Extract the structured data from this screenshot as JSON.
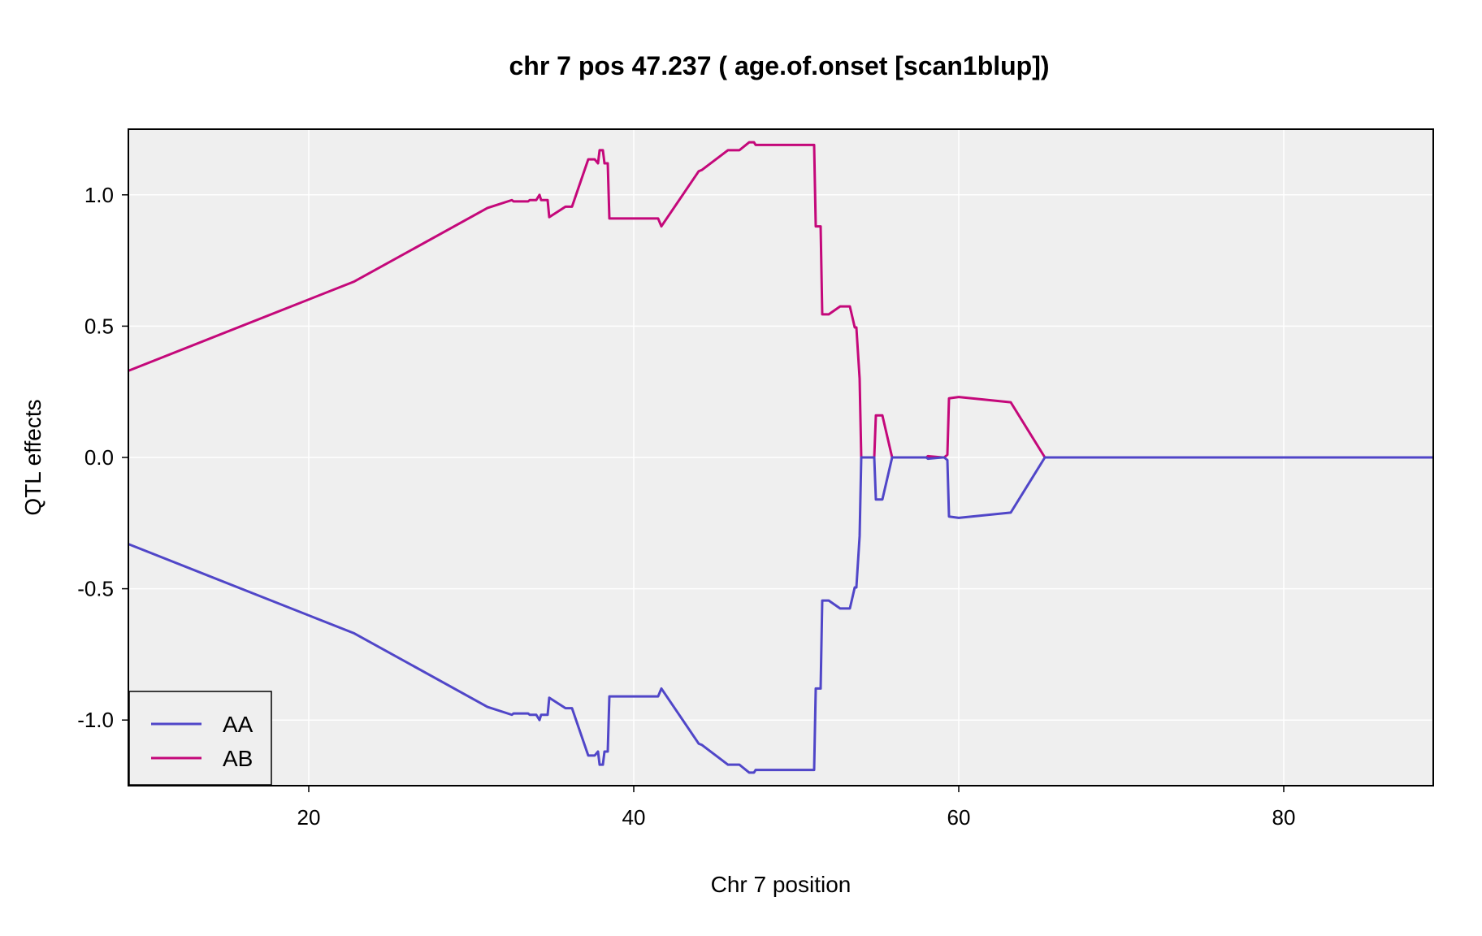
{
  "chart_data": {
    "type": "line",
    "title": "chr 7 pos 47.237 ( age.of.onset  [scan1blup])",
    "xlabel": "Chr 7 position",
    "ylabel": "QTL effects",
    "xlim": [
      8.9,
      89.2
    ],
    "ylim": [
      -1.25,
      1.25
    ],
    "xticks": [
      20,
      40,
      60,
      80
    ],
    "xtick_labels": [
      "20",
      "40",
      "60",
      "80"
    ],
    "yticks": [
      -1.0,
      -0.5,
      0.0,
      0.5,
      1.0
    ],
    "ytick_labels": [
      "-1.0",
      "-0.5",
      "0.0",
      "0.5",
      "1.0"
    ],
    "grid": true,
    "legend_position": "bottom-left",
    "colors": {
      "AA": "#5046c8",
      "AB": "#c4087a",
      "panel_bg": "#efefef",
      "grid": "#ffffff"
    },
    "series": [
      {
        "name": "AB",
        "x": [
          8.9,
          22.8,
          31.0,
          32.5,
          32.6,
          33.5,
          33.6,
          34.0,
          34.2,
          34.3,
          34.7,
          34.8,
          35.8,
          36.2,
          37.2,
          37.6,
          37.8,
          37.9,
          38.1,
          38.2,
          38.4,
          38.5,
          41.3,
          41.5,
          41.7,
          44.0,
          44.2,
          45.8,
          46.5,
          47.1,
          47.4,
          47.5,
          51.1,
          51.2,
          51.5,
          51.6,
          52.0,
          52.7,
          53.3,
          53.6,
          53.7,
          53.9,
          54.0,
          54.8,
          54.9,
          55.3,
          55.9,
          58.0,
          58.1,
          59.0,
          59.1,
          59.3,
          59.4,
          60.0,
          63.2,
          65.3,
          89.2
        ],
        "values": [
          0.33,
          0.67,
          0.95,
          0.98,
          0.975,
          0.975,
          0.98,
          0.98,
          1.0,
          0.98,
          0.98,
          0.915,
          0.955,
          0.955,
          1.135,
          1.135,
          1.12,
          1.17,
          1.17,
          1.12,
          1.12,
          0.91,
          0.91,
          0.91,
          0.88,
          1.09,
          1.095,
          1.17,
          1.17,
          1.2,
          1.2,
          1.19,
          1.19,
          0.88,
          0.88,
          0.545,
          0.545,
          0.575,
          0.575,
          0.495,
          0.495,
          0.3,
          0.0,
          0.0,
          0.16,
          0.16,
          0.0,
          0.0,
          0.005,
          0.0,
          0.0,
          0.01,
          0.225,
          0.23,
          0.21,
          0.0,
          0.0
        ]
      },
      {
        "name": "AA",
        "x": [
          8.9,
          22.8,
          31.0,
          32.5,
          32.6,
          33.5,
          33.6,
          34.0,
          34.2,
          34.3,
          34.7,
          34.8,
          35.8,
          36.2,
          37.2,
          37.6,
          37.8,
          37.9,
          38.1,
          38.2,
          38.4,
          38.5,
          41.3,
          41.5,
          41.7,
          44.0,
          44.2,
          45.8,
          46.5,
          47.1,
          47.4,
          47.5,
          51.1,
          51.2,
          51.5,
          51.6,
          52.0,
          52.7,
          53.3,
          53.6,
          53.7,
          53.9,
          54.0,
          54.8,
          54.9,
          55.3,
          55.9,
          58.0,
          58.1,
          59.0,
          59.1,
          59.3,
          59.4,
          60.0,
          63.2,
          65.3,
          89.2
        ],
        "values": [
          -0.33,
          -0.67,
          -0.95,
          -0.98,
          -0.975,
          -0.975,
          -0.98,
          -0.98,
          -1.0,
          -0.98,
          -0.98,
          -0.915,
          -0.955,
          -0.955,
          -1.135,
          -1.135,
          -1.12,
          -1.17,
          -1.17,
          -1.12,
          -1.12,
          -0.91,
          -0.91,
          -0.91,
          -0.88,
          -1.09,
          -1.095,
          -1.17,
          -1.17,
          -1.2,
          -1.2,
          -1.19,
          -1.19,
          -0.88,
          -0.88,
          -0.545,
          -0.545,
          -0.575,
          -0.575,
          -0.495,
          -0.495,
          -0.3,
          0.0,
          0.0,
          -0.16,
          -0.16,
          0.0,
          0.0,
          -0.005,
          0.0,
          0.0,
          -0.01,
          -0.225,
          -0.23,
          -0.21,
          0.0,
          0.0
        ]
      }
    ],
    "legend_order": [
      "AA",
      "AB"
    ]
  }
}
